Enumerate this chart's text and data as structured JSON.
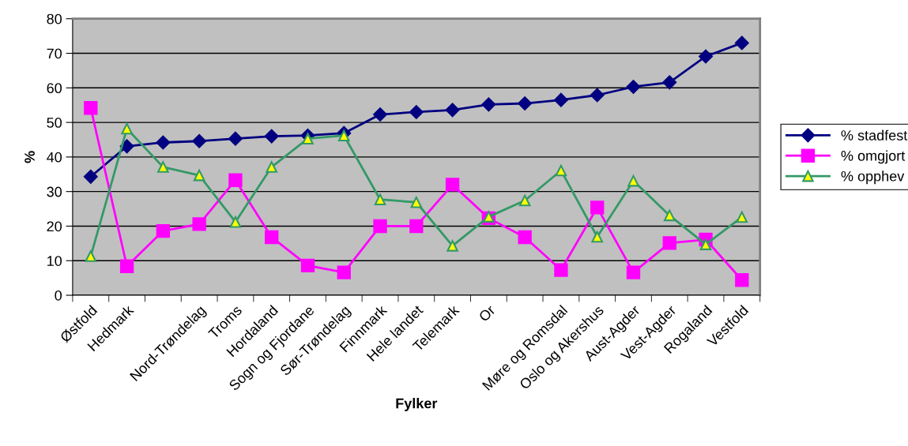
{
  "chart_data": {
    "type": "line",
    "xlabel": "Fylker",
    "ylabel": "%",
    "categories": [
      "Østfold",
      "Hedmark",
      null,
      "Nord-Trøndelag",
      "Troms",
      "Hordaland",
      "Sogn og Fjordane",
      "Sør-Trøndelag",
      "Finnmark",
      "Hele landet",
      "Telemark",
      "Or",
      null,
      "Møre og Romsdal",
      "Oslo og Akershus",
      "Aust-Agder",
      "Vest-Agder",
      "Rogaland",
      "Vestfold"
    ],
    "series": [
      {
        "name": "% stadfest",
        "color": "#000080",
        "marker": "diamond",
        "values": [
          34.3,
          43.1,
          44.2,
          44.6,
          45.3,
          46.0,
          46.2,
          46.9,
          52.3,
          53.0,
          53.6,
          55.2,
          55.5,
          56.5,
          57.9,
          60.3,
          61.6,
          69.1,
          73.0
        ]
      },
      {
        "name": "% omgjort",
        "color": "#ff00ff",
        "marker": "square",
        "values": [
          54.2,
          8.4,
          18.6,
          20.6,
          33.3,
          16.8,
          8.6,
          6.6,
          20.0,
          20.0,
          32.0,
          22.3,
          16.8,
          7.3,
          25.4,
          6.6,
          15.1,
          16.1,
          4.4
        ]
      },
      {
        "name": "% opphev",
        "color": "#339966",
        "marker": "triangle",
        "values": [
          11.3,
          48.2,
          37.1,
          34.7,
          21.2,
          37.1,
          45.3,
          46.2,
          27.7,
          26.9,
          14.3,
          22.7,
          27.4,
          36.1,
          16.9,
          33.1,
          23.1,
          14.7,
          22.6
        ]
      }
    ],
    "ylim": [
      0,
      80
    ],
    "yticks": [
      0,
      10,
      20,
      30,
      40,
      50,
      60,
      70,
      80
    ],
    "grid": "y",
    "legend": "right",
    "line_style": "solid"
  }
}
